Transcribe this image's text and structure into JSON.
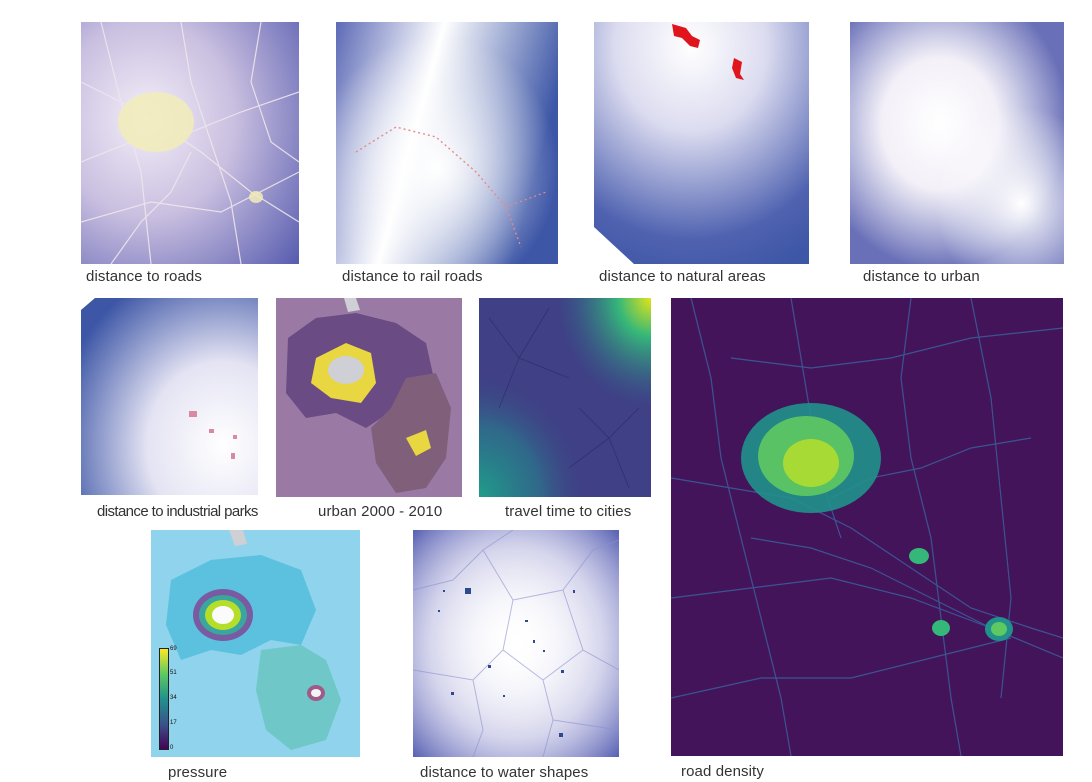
{
  "captions": {
    "roads": "distance to roads",
    "rail_roads": "distance to rail roads",
    "natural_areas": "distance to natural areas",
    "urban": "distance to urban",
    "industrial_parks": "distance to industrial parks",
    "urban_2000_2010": "urban 2000 - 2010",
    "travel_time": "travel time to cities",
    "road_density": "road density",
    "pressure": "pressure",
    "water_shapes": "distance to water shapes"
  },
  "pressure_legend": {
    "ticks": [
      "69",
      "51",
      "34",
      "17",
      "0"
    ],
    "colors": [
      "#fde725",
      "#5ec962",
      "#21918c",
      "#3b528b",
      "#440154"
    ]
  },
  "colors": {
    "distance_dark": "#3d56a6",
    "distance_light": "#ffffff",
    "natural_area": "#e0141c",
    "road_density_bg": "#43145a",
    "urban_purple": "#9a6fa0",
    "pressure_bg": "#8fd3ec"
  }
}
